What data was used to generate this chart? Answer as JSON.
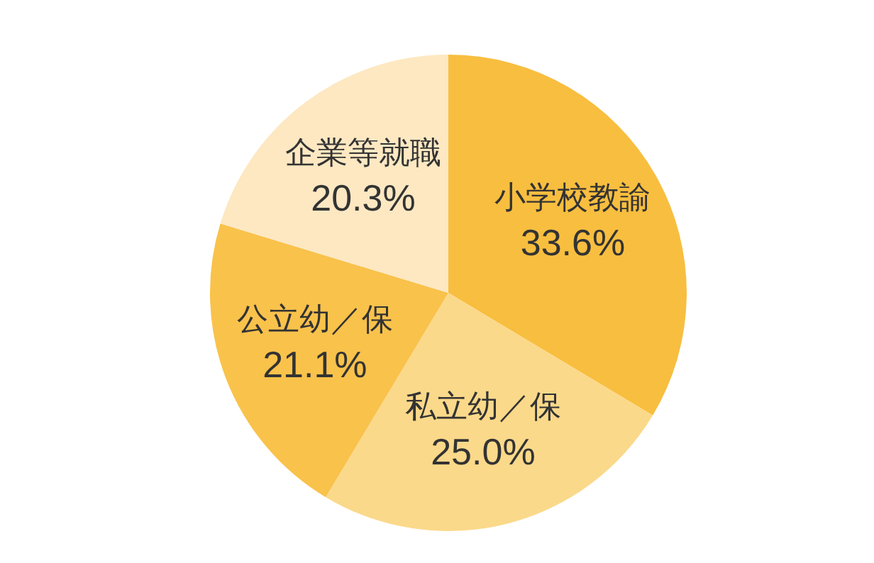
{
  "chart_data": {
    "type": "pie",
    "categories": [
      "小学校教諭",
      "私立幼／保",
      "公立幼／保",
      "企業等就職"
    ],
    "values": [
      33.6,
      25.0,
      21.1,
      20.3
    ],
    "value_labels": [
      "33.6%",
      "25.0%",
      "21.1%",
      "20.3%"
    ],
    "colors": [
      "#f8be3f",
      "#fbd98a",
      "#f9c24b",
      "#fde8c2"
    ],
    "legend": false
  }
}
